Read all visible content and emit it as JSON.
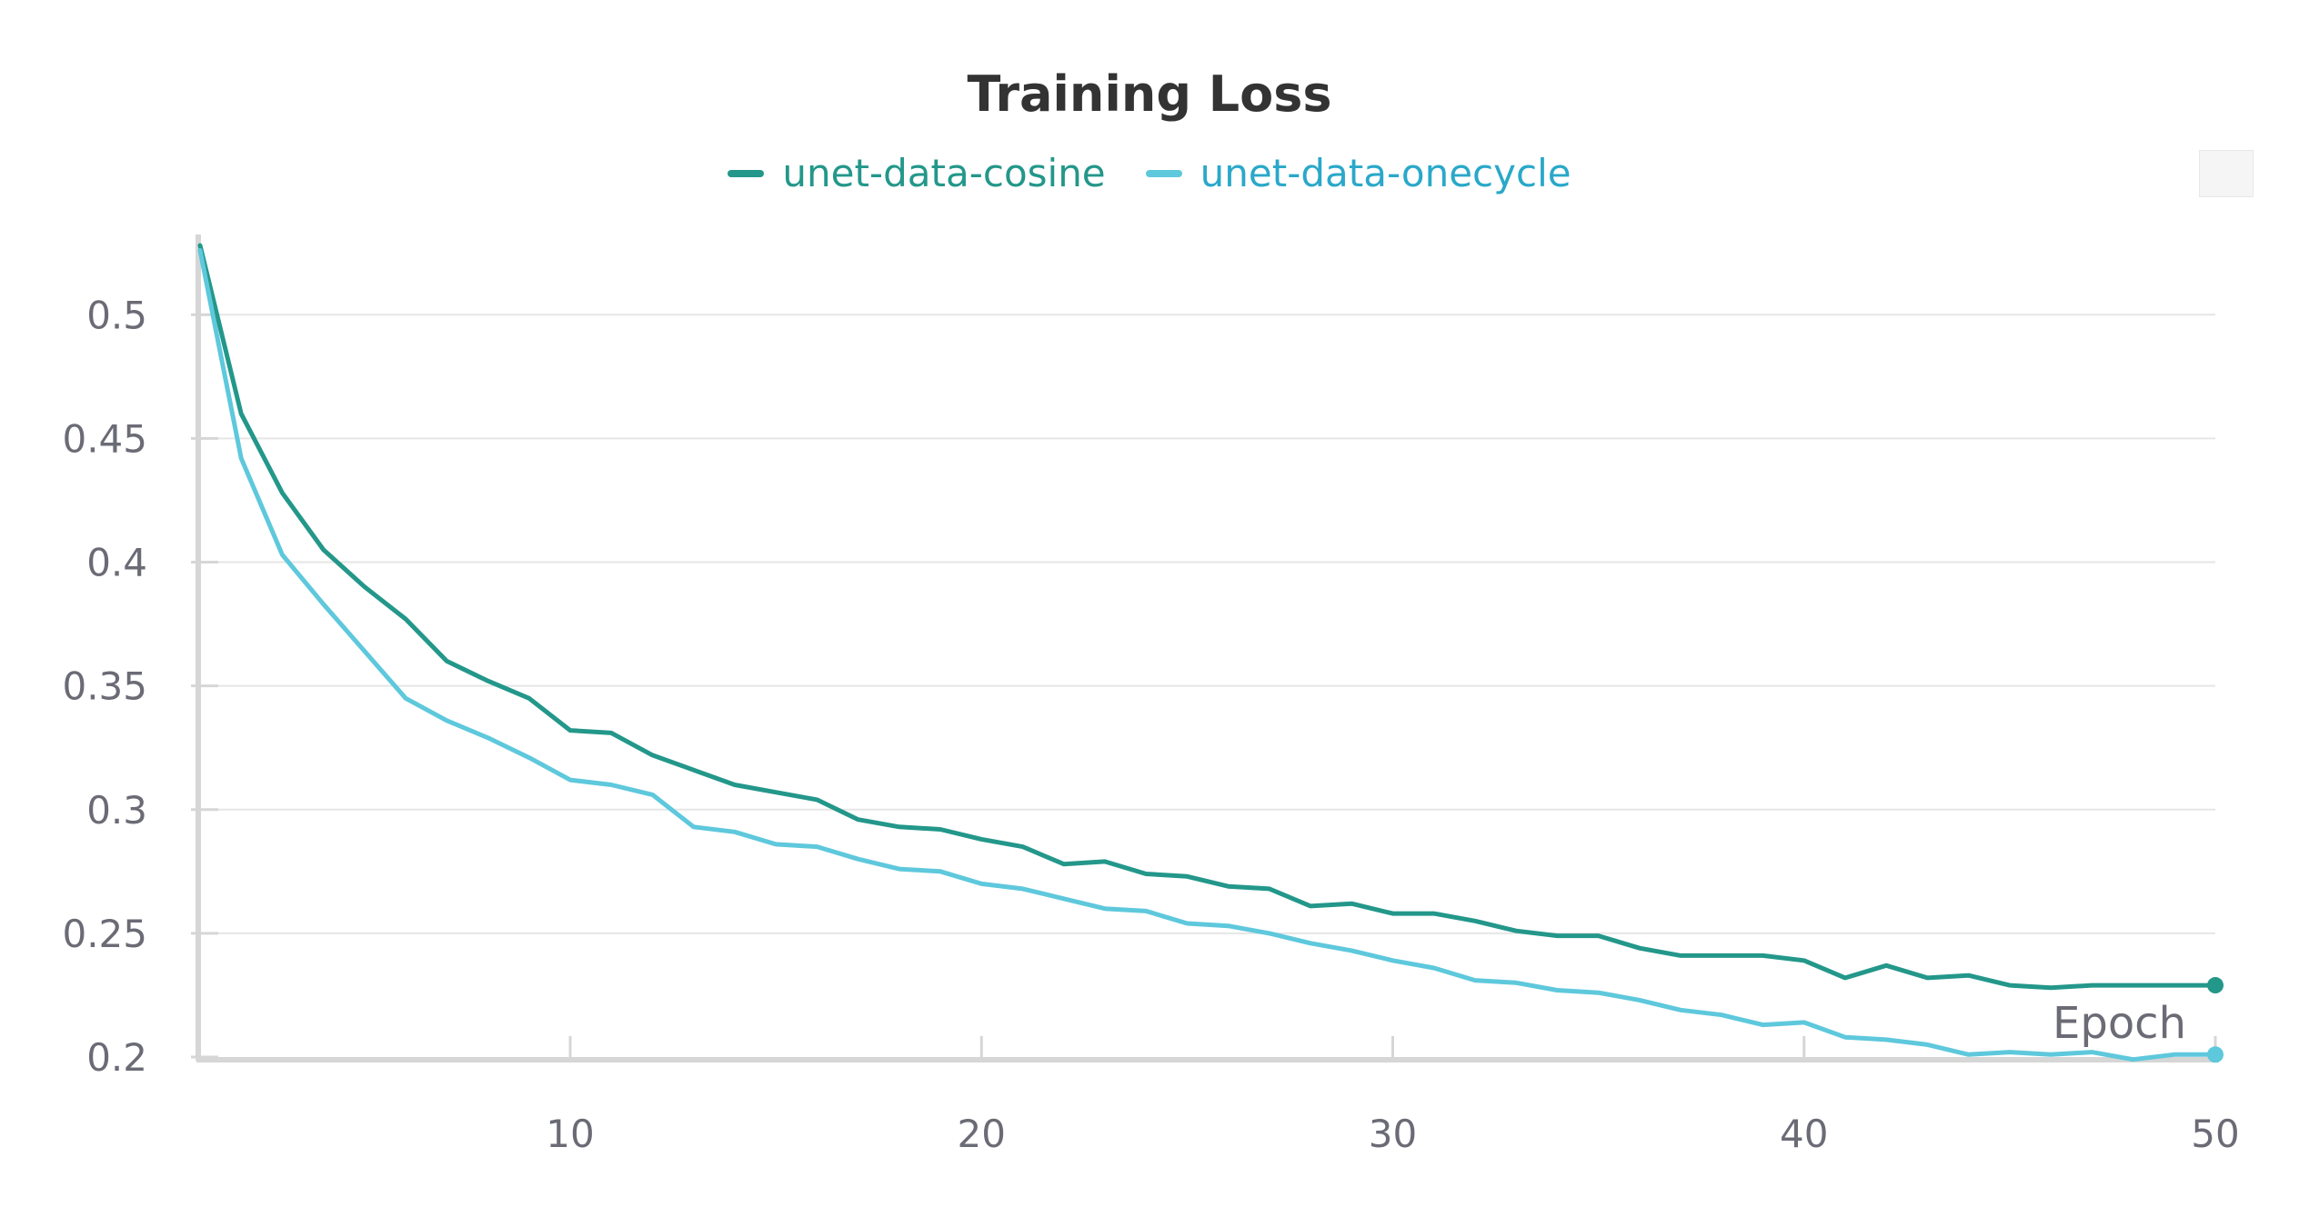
{
  "colors": {
    "cosine": "#23978a",
    "onecycle": "#5ec8dc",
    "grid": "#e6e6e6",
    "axis": "#d6d6d6"
  },
  "chart_data": {
    "type": "line",
    "title": "Training Loss",
    "xlabel": "Epoch",
    "ylabel": "",
    "xlim": [
      1,
      50
    ],
    "ylim": [
      0.2,
      0.535
    ],
    "xticks": [
      10,
      20,
      30,
      40,
      50
    ],
    "yticks": [
      0.2,
      0.25,
      0.3,
      0.35,
      0.4,
      0.45,
      0.5
    ],
    "grid": true,
    "legend_position": "top-center",
    "x": [
      1,
      2,
      3,
      4,
      5,
      6,
      7,
      8,
      9,
      10,
      11,
      12,
      13,
      14,
      15,
      16,
      17,
      18,
      19,
      20,
      21,
      22,
      23,
      24,
      25,
      26,
      27,
      28,
      29,
      30,
      31,
      32,
      33,
      34,
      35,
      36,
      37,
      38,
      39,
      40,
      41,
      42,
      43,
      44,
      45,
      46,
      47,
      48,
      49,
      50
    ],
    "series": [
      {
        "name": "unet-data-cosine",
        "values": [
          0.528,
          0.46,
          0.428,
          0.405,
          0.39,
          0.377,
          0.36,
          0.352,
          0.345,
          0.332,
          0.331,
          0.322,
          0.316,
          0.31,
          0.307,
          0.304,
          0.296,
          0.293,
          0.292,
          0.288,
          0.285,
          0.278,
          0.279,
          0.274,
          0.273,
          0.269,
          0.268,
          0.261,
          0.262,
          0.258,
          0.258,
          0.255,
          0.251,
          0.249,
          0.249,
          0.244,
          0.241,
          0.241,
          0.241,
          0.239,
          0.232,
          0.237,
          0.232,
          0.233,
          0.229,
          0.228,
          0.229,
          0.229,
          0.229,
          0.229
        ]
      },
      {
        "name": "unet-data-onecycle",
        "values": [
          0.526,
          0.442,
          0.403,
          0.383,
          0.364,
          0.345,
          0.336,
          0.329,
          0.321,
          0.312,
          0.31,
          0.306,
          0.293,
          0.291,
          0.286,
          0.285,
          0.28,
          0.276,
          0.275,
          0.27,
          0.268,
          0.264,
          0.26,
          0.259,
          0.254,
          0.253,
          0.25,
          0.246,
          0.243,
          0.239,
          0.236,
          0.231,
          0.23,
          0.227,
          0.226,
          0.223,
          0.219,
          0.217,
          0.213,
          0.214,
          0.208,
          0.207,
          0.205,
          0.201,
          0.202,
          0.201,
          0.202,
          0.199,
          0.201,
          0.201
        ]
      }
    ]
  }
}
